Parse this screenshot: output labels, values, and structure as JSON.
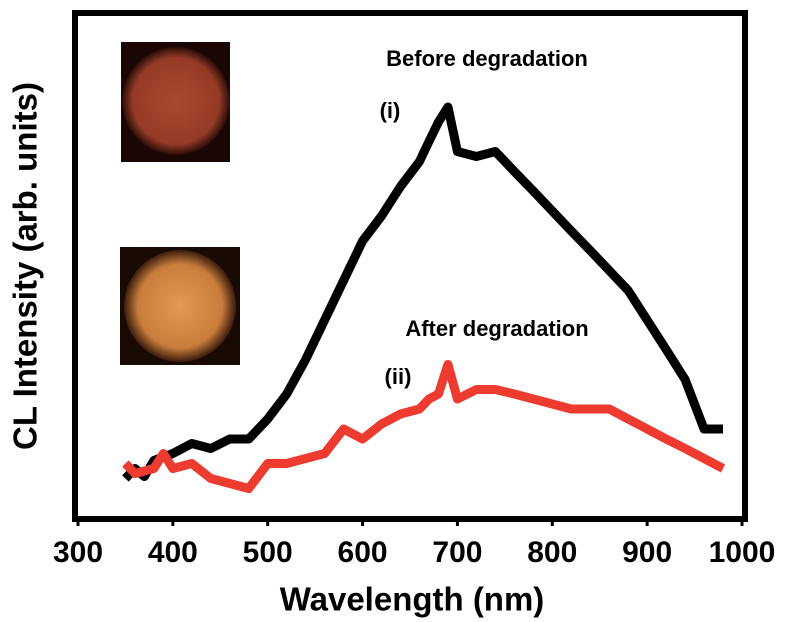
{
  "chart_data": {
    "type": "line",
    "xlabel": "Wavelength (nm)",
    "ylabel": "CL Intensity (arb. units)",
    "xlim": [
      300,
      1000
    ],
    "xticks": [
      300,
      400,
      500,
      600,
      700,
      800,
      900,
      1000
    ],
    "ylim": [
      0,
      100
    ],
    "annotations": [
      "Before degradation",
      "(i)",
      "After degradation",
      "(ii)"
    ],
    "series": [
      {
        "color": "#000000",
        "x": [
          350,
          360,
          370,
          380,
          400,
          420,
          440,
          460,
          480,
          500,
          520,
          540,
          560,
          580,
          600,
          620,
          640,
          660,
          670,
          680,
          690,
          700,
          720,
          740,
          750,
          760,
          780,
          800,
          820,
          840,
          860,
          880,
          900,
          920,
          940,
          960,
          980
        ],
        "values": [
          7.5,
          9.5,
          7.9,
          11.1,
          12.5,
          14.5,
          13.5,
          15.4,
          15.4,
          19.4,
          24.4,
          31.3,
          39.2,
          47.1,
          55,
          60,
          65.9,
          70.9,
          74.9,
          78.8,
          81.8,
          72.9,
          71.9,
          72.9,
          70.9,
          68.9,
          65,
          61,
          57,
          53.1,
          49.1,
          45.1,
          39.2,
          33.3,
          27.3,
          17.4,
          17.4
        ]
      },
      {
        "color": "#ee3b2f",
        "x": [
          350,
          360,
          380,
          390,
          400,
          420,
          440,
          460,
          480,
          500,
          520,
          540,
          560,
          580,
          600,
          620,
          640,
          660,
          670,
          680,
          690,
          700,
          720,
          740,
          760,
          780,
          800,
          820,
          840,
          860,
          880,
          900,
          920,
          940,
          960,
          980
        ],
        "values": [
          10.5,
          8.5,
          9.5,
          12.5,
          9.5,
          10.5,
          7.5,
          6.5,
          5.5,
          10.5,
          10.5,
          11.5,
          12.5,
          17.4,
          15.4,
          18.4,
          20.4,
          21.4,
          23.4,
          24.4,
          30.3,
          23.4,
          25.3,
          25.3,
          24.4,
          23.4,
          22.4,
          21.4,
          21.4,
          21.4,
          19.4,
          17.4,
          15.4,
          13.5,
          11.5,
          9.5
        ]
      }
    ]
  }
}
